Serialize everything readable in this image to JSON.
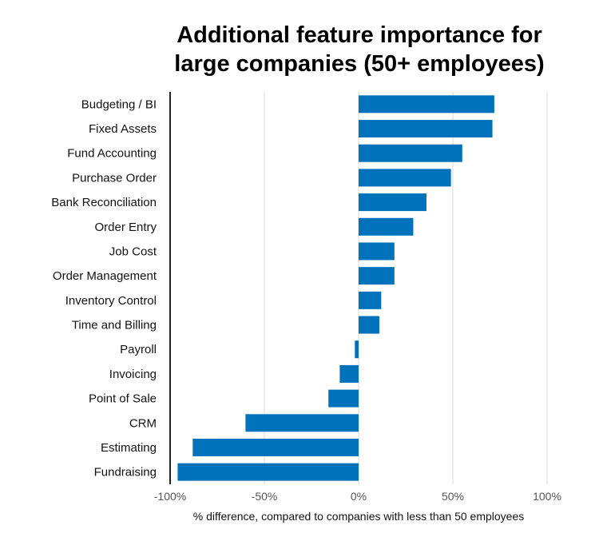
{
  "chart_data": {
    "type": "bar",
    "orientation": "horizontal",
    "title_lines": [
      "Additional feature importance for",
      "large companies (50+ employees)"
    ],
    "xlabel": "% difference, compared to companies with less than 50 employees",
    "ylabel": "",
    "categories": [
      "Budgeting / BI",
      "Fixed Assets",
      "Fund Accounting",
      "Purchase Order",
      "Bank Reconciliation",
      "Order Entry",
      "Job Cost",
      "Order Management",
      "Inventory Control",
      "Time and Billing",
      "Payroll",
      "Invoicing",
      "Point of Sale",
      "CRM",
      "Estimating",
      "Fundraising"
    ],
    "values": [
      72,
      71,
      55,
      49,
      36,
      29,
      19,
      19,
      12,
      11,
      -2,
      -10,
      -16,
      -60,
      -88,
      -96
    ],
    "xlim": [
      -100,
      100
    ],
    "xticks": [
      -100,
      -50,
      0,
      50,
      100
    ],
    "xtick_labels": [
      "-100%",
      "-50%",
      "0%",
      "50%",
      "100%"
    ],
    "grid": "vertical",
    "bar_color": "#0072BC",
    "grid_color": "#d9d9d9",
    "axis_color": "#222222"
  }
}
